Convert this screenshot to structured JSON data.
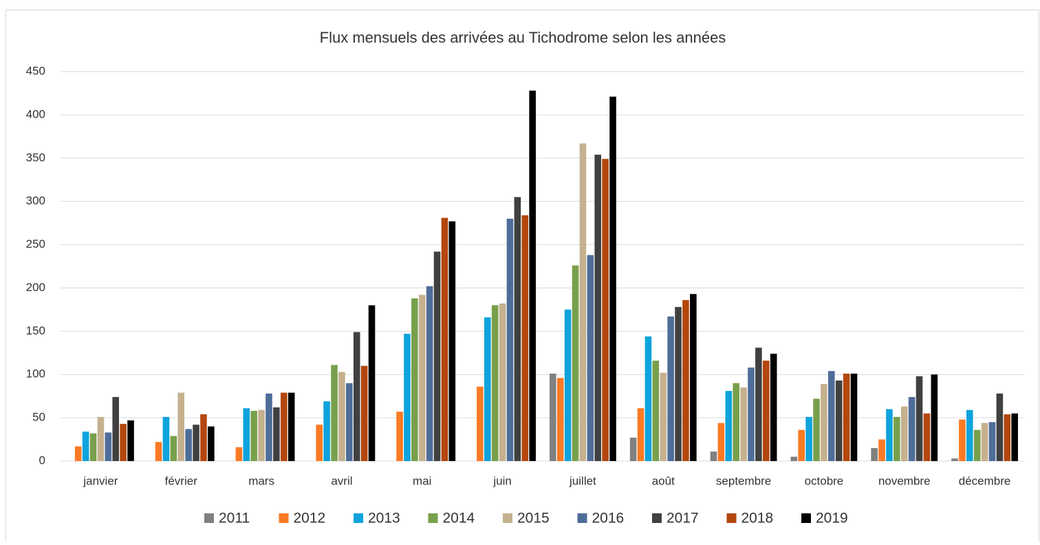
{
  "chart_data": {
    "type": "bar",
    "title": "Flux mensuels des arrivées au Tichodrome selon les années",
    "categories": [
      "janvier",
      "février",
      "mars",
      "avril",
      "mai",
      "juin",
      "juillet",
      "août",
      "septembre",
      "octobre",
      "novembre",
      "décembre"
    ],
    "series": [
      {
        "name": "2011",
        "color": "#808080",
        "values": [
          null,
          null,
          null,
          null,
          null,
          null,
          101,
          27,
          11,
          5,
          15,
          3
        ]
      },
      {
        "name": "2012",
        "color": "#fb7a24",
        "values": [
          17,
          22,
          16,
          42,
          57,
          86,
          96,
          61,
          44,
          36,
          25,
          48
        ]
      },
      {
        "name": "2013",
        "color": "#0ea3dc",
        "values": [
          34,
          51,
          61,
          69,
          147,
          166,
          175,
          144,
          81,
          51,
          60,
          59
        ]
      },
      {
        "name": "2014",
        "color": "#78a04c",
        "values": [
          32,
          29,
          58,
          111,
          188,
          180,
          226,
          116,
          90,
          72,
          51,
          36
        ]
      },
      {
        "name": "2015",
        "color": "#c5b18e",
        "values": [
          51,
          79,
          59,
          103,
          192,
          182,
          367,
          102,
          85,
          89,
          63,
          44
        ]
      },
      {
        "name": "2016",
        "color": "#4e6d99",
        "values": [
          33,
          37,
          78,
          90,
          202,
          280,
          238,
          167,
          108,
          104,
          74,
          45
        ]
      },
      {
        "name": "2017",
        "color": "#404040",
        "values": [
          74,
          42,
          62,
          149,
          242,
          305,
          354,
          178,
          131,
          93,
          98,
          78
        ]
      },
      {
        "name": "2018",
        "color": "#b3470d",
        "values": [
          43,
          54,
          79,
          110,
          281,
          284,
          349,
          186,
          116,
          101,
          55,
          54
        ]
      },
      {
        "name": "2019",
        "color": "#000000",
        "values": [
          47,
          40,
          79,
          180,
          277,
          428,
          421,
          193,
          124,
          101,
          100,
          55
        ]
      }
    ],
    "ylim": [
      0,
      450
    ],
    "yticks": [
      0,
      50,
      100,
      150,
      200,
      250,
      300,
      350,
      400,
      450
    ],
    "grid": true,
    "legend": "bottom"
  }
}
